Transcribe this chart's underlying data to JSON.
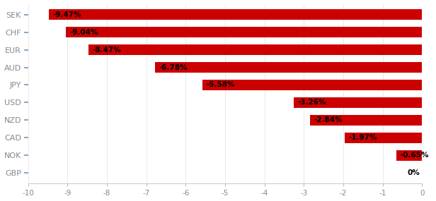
{
  "currencies": [
    "SEK",
    "CHF",
    "EUR",
    "AUD",
    "JPY",
    "USD",
    "NZD",
    "CAD",
    "NOK",
    "GBP"
  ],
  "values": [
    -9.47,
    -9.04,
    -8.47,
    -6.78,
    -5.58,
    -3.26,
    -2.84,
    -1.97,
    -0.65,
    0.0
  ],
  "labels": [
    "-9.47%",
    "-9.04%",
    "-8.47%",
    "-6.78%",
    "-5.58%",
    "-3.26%",
    "-2.84%",
    "-1.97%",
    "-0.65%",
    "0%"
  ],
  "bar_color": "#cc0000",
  "label_color": "#000000",
  "background_color": "#ffffff",
  "xlim": [
    -10,
    0
  ],
  "xticks": [
    -10,
    -9,
    -8,
    -7,
    -6,
    -5,
    -4,
    -3,
    -2,
    -1,
    0
  ],
  "bar_height": 0.6,
  "label_fontsize": 7.5,
  "tick_fontsize": 7.5,
  "ytick_fontsize": 8,
  "ytick_color": "#888888",
  "xtick_color": "#888888"
}
